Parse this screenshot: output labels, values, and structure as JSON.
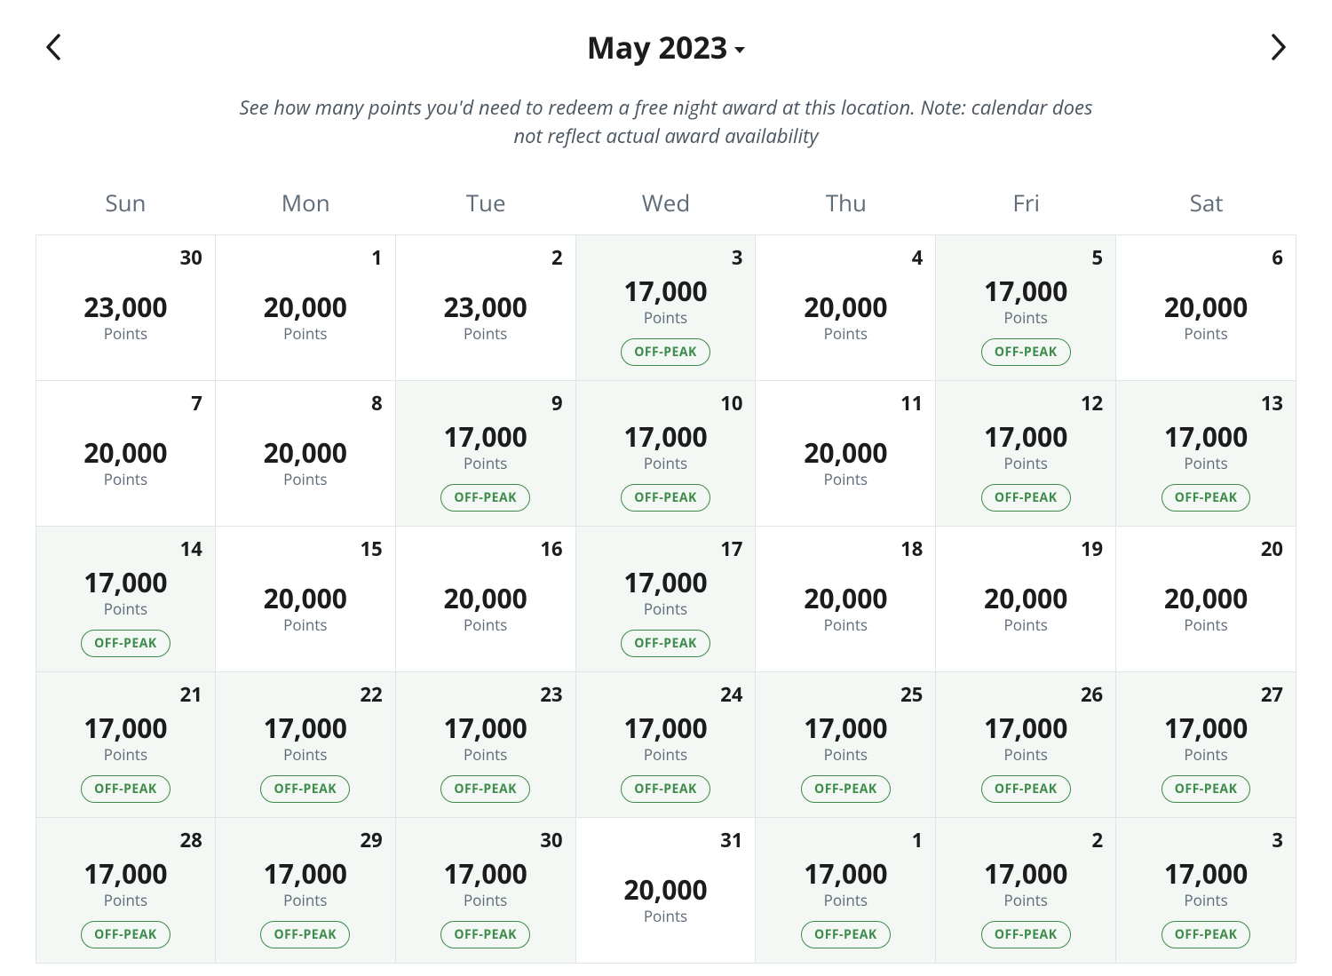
{
  "header": {
    "month_label": "May 2023"
  },
  "subtitle": "See how many points you'd need to redeem a free night award at this location. Note: calendar does not reflect actual award availability",
  "weekdays": [
    "Sun",
    "Mon",
    "Tue",
    "Wed",
    "Thu",
    "Fri",
    "Sat"
  ],
  "points_label": "Points",
  "offpeak_label": "OFF-PEAK",
  "colors": {
    "offpeak_bg": "#f3f8f4",
    "default_bg": "#ffffff",
    "border": "#e2e5e8",
    "text_primary": "#1c1c1c",
    "text_secondary": "#5f6b78",
    "pill_color": "#3d8b4a"
  },
  "days": [
    {
      "day": "30",
      "points": "23,000",
      "offpeak": false
    },
    {
      "day": "1",
      "points": "20,000",
      "offpeak": false
    },
    {
      "day": "2",
      "points": "23,000",
      "offpeak": false
    },
    {
      "day": "3",
      "points": "17,000",
      "offpeak": true
    },
    {
      "day": "4",
      "points": "20,000",
      "offpeak": false
    },
    {
      "day": "5",
      "points": "17,000",
      "offpeak": true
    },
    {
      "day": "6",
      "points": "20,000",
      "offpeak": false
    },
    {
      "day": "7",
      "points": "20,000",
      "offpeak": false
    },
    {
      "day": "8",
      "points": "20,000",
      "offpeak": false
    },
    {
      "day": "9",
      "points": "17,000",
      "offpeak": true
    },
    {
      "day": "10",
      "points": "17,000",
      "offpeak": true
    },
    {
      "day": "11",
      "points": "20,000",
      "offpeak": false
    },
    {
      "day": "12",
      "points": "17,000",
      "offpeak": true
    },
    {
      "day": "13",
      "points": "17,000",
      "offpeak": true
    },
    {
      "day": "14",
      "points": "17,000",
      "offpeak": true
    },
    {
      "day": "15",
      "points": "20,000",
      "offpeak": false
    },
    {
      "day": "16",
      "points": "20,000",
      "offpeak": false
    },
    {
      "day": "17",
      "points": "17,000",
      "offpeak": true
    },
    {
      "day": "18",
      "points": "20,000",
      "offpeak": false
    },
    {
      "day": "19",
      "points": "20,000",
      "offpeak": false
    },
    {
      "day": "20",
      "points": "20,000",
      "offpeak": false
    },
    {
      "day": "21",
      "points": "17,000",
      "offpeak": true
    },
    {
      "day": "22",
      "points": "17,000",
      "offpeak": true
    },
    {
      "day": "23",
      "points": "17,000",
      "offpeak": true
    },
    {
      "day": "24",
      "points": "17,000",
      "offpeak": true
    },
    {
      "day": "25",
      "points": "17,000",
      "offpeak": true
    },
    {
      "day": "26",
      "points": "17,000",
      "offpeak": true
    },
    {
      "day": "27",
      "points": "17,000",
      "offpeak": true
    },
    {
      "day": "28",
      "points": "17,000",
      "offpeak": true
    },
    {
      "day": "29",
      "points": "17,000",
      "offpeak": true
    },
    {
      "day": "30",
      "points": "17,000",
      "offpeak": true
    },
    {
      "day": "31",
      "points": "20,000",
      "offpeak": false
    },
    {
      "day": "1",
      "points": "17,000",
      "offpeak": true
    },
    {
      "day": "2",
      "points": "17,000",
      "offpeak": true
    },
    {
      "day": "3",
      "points": "17,000",
      "offpeak": true
    }
  ]
}
